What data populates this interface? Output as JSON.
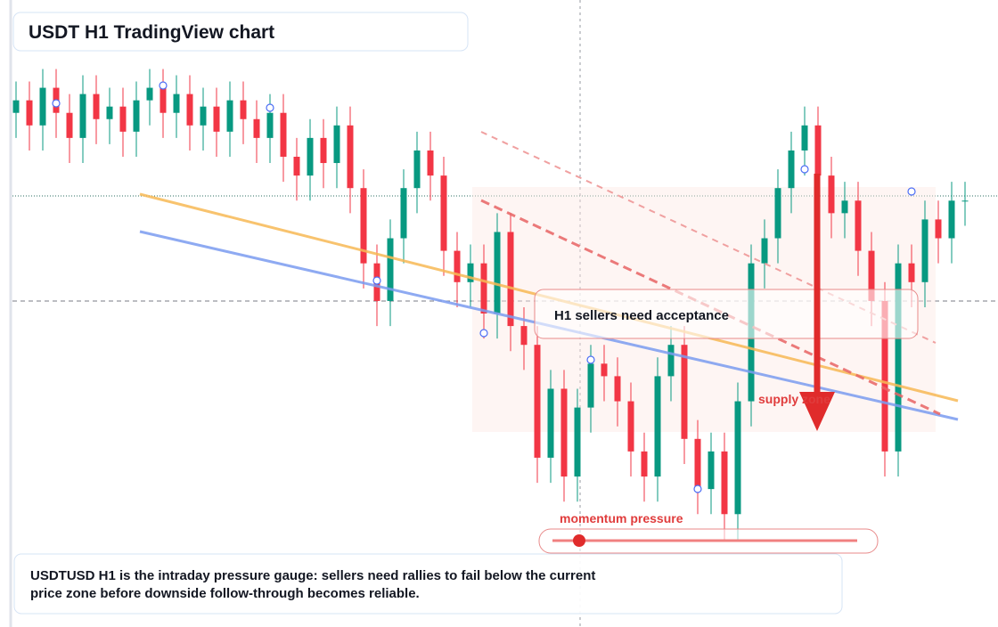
{
  "chart_data": {
    "type": "candlestick",
    "title": "USDT H1 TradingView chart",
    "annotations": [
      "H1 sellers need acceptance",
      "supply zone",
      "momentum pressure"
    ],
    "caption": "USDTUSD H1 is the intraday pressure gauge: sellers need rallies to fail below the current price zone before downside follow-through becomes reliable.",
    "ylim": [
      0,
      100
    ],
    "up_color": "#089981",
    "down_color": "#f23645",
    "open": [
      82,
      84,
      80,
      86,
      82,
      78,
      85,
      81,
      83,
      79,
      84,
      86,
      82,
      85,
      80,
      83,
      79,
      84,
      81,
      78,
      82,
      75,
      72,
      78,
      74,
      80,
      70,
      58,
      52,
      62,
      70,
      76,
      72,
      60,
      55,
      58,
      50,
      63,
      48,
      45,
      27,
      38,
      24,
      35,
      42,
      40,
      36,
      28,
      24,
      40,
      45,
      30,
      22,
      28,
      18,
      36,
      58,
      62,
      70,
      76,
      80,
      72,
      66,
      68,
      60,
      52,
      28,
      58,
      55,
      65,
      62,
      68
    ],
    "high": [
      87,
      87,
      89,
      89,
      85,
      88,
      88,
      86,
      86,
      87,
      89,
      89,
      88,
      88,
      86,
      86,
      87,
      87,
      84,
      85,
      85,
      78,
      81,
      81,
      83,
      83,
      73,
      61,
      65,
      73,
      79,
      79,
      75,
      63,
      61,
      61,
      66,
      66,
      51,
      48,
      41,
      41,
      38,
      45,
      45,
      43,
      39,
      31,
      43,
      48,
      48,
      33,
      31,
      31,
      39,
      61,
      65,
      73,
      79,
      83,
      83,
      75,
      71,
      71,
      63,
      55,
      61,
      61,
      68,
      68,
      71,
      71
    ],
    "low": [
      78,
      76,
      76,
      78,
      74,
      74,
      77,
      77,
      75,
      75,
      80,
      78,
      78,
      76,
      76,
      75,
      75,
      77,
      74,
      74,
      71,
      68,
      68,
      70,
      70,
      66,
      54,
      48,
      48,
      58,
      66,
      68,
      56,
      51,
      51,
      46,
      46,
      44,
      41,
      23,
      23,
      20,
      20,
      31,
      36,
      32,
      24,
      20,
      20,
      36,
      26,
      18,
      18,
      14,
      14,
      32,
      54,
      58,
      66,
      72,
      68,
      62,
      62,
      56,
      48,
      24,
      24,
      51,
      51,
      58,
      58,
      64
    ],
    "close": [
      84,
      80,
      86,
      82,
      78,
      85,
      81,
      83,
      79,
      84,
      86,
      82,
      85,
      80,
      83,
      79,
      84,
      81,
      78,
      82,
      75,
      72,
      78,
      74,
      80,
      70,
      58,
      52,
      62,
      70,
      76,
      72,
      60,
      55,
      58,
      50,
      63,
      48,
      45,
      27,
      38,
      24,
      35,
      42,
      40,
      36,
      28,
      24,
      40,
      45,
      30,
      22,
      28,
      18,
      36,
      58,
      62,
      70,
      76,
      80,
      72,
      66,
      68,
      60,
      52,
      28,
      58,
      55,
      65,
      62,
      68,
      68
    ]
  }
}
